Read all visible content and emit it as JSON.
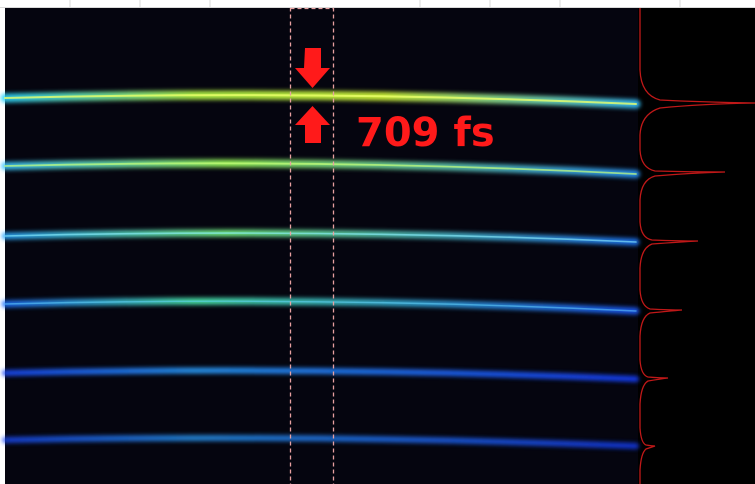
{
  "annotation": "709 fs"
}
